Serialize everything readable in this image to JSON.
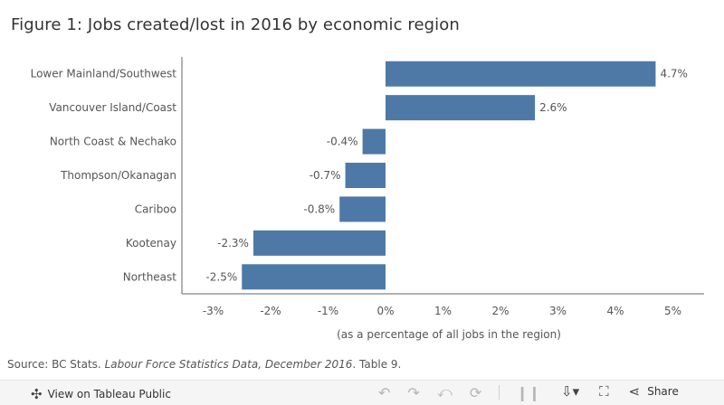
{
  "title": "Figure 1: Jobs created/lost in 2016 by economic region",
  "source": {
    "prefix": "Source: BC Stats. ",
    "italic": "Labour Force Statistics Data, December 2016",
    "suffix": ". Table 9."
  },
  "toolbar": {
    "view_label": "View on Tableau Public",
    "share_label": "Share",
    "icons": [
      "tableau-logo-icon",
      "undo-icon",
      "redo-icon",
      "revert-icon",
      "refresh-icon",
      "pause-icon",
      "download-icon",
      "fullscreen-icon",
      "share-icon"
    ]
  },
  "colors": {
    "bar": "#4e79a7",
    "axis": "#666666"
  },
  "chart_data": {
    "type": "bar",
    "orientation": "horizontal",
    "title": "Figure 1: Jobs created/lost in 2016 by economic region",
    "categories": [
      "Lower Mainland/Southwest",
      "Vancouver Island/Coast",
      "North Coast & Nechako",
      "Thompson/Okanagan",
      "Cariboo",
      "Kootenay",
      "Northeast"
    ],
    "values": [
      4.7,
      2.6,
      -0.4,
      -0.7,
      -0.8,
      -2.3,
      -2.5
    ],
    "value_labels": [
      "4.7%",
      "2.6%",
      "-0.4%",
      "-0.7%",
      "-0.8%",
      "-2.3%",
      "-2.5%"
    ],
    "xlabel": "(as a percentage of all jobs in the region)",
    "xticks": [
      -3,
      -2,
      -1,
      0,
      1,
      2,
      3,
      4,
      5
    ],
    "xtick_labels": [
      "-3%",
      "-2%",
      "-1%",
      "0%",
      "1%",
      "2%",
      "3%",
      "4%",
      "5%"
    ],
    "xlim": [
      -3.5,
      5.5
    ],
    "grid": false
  }
}
